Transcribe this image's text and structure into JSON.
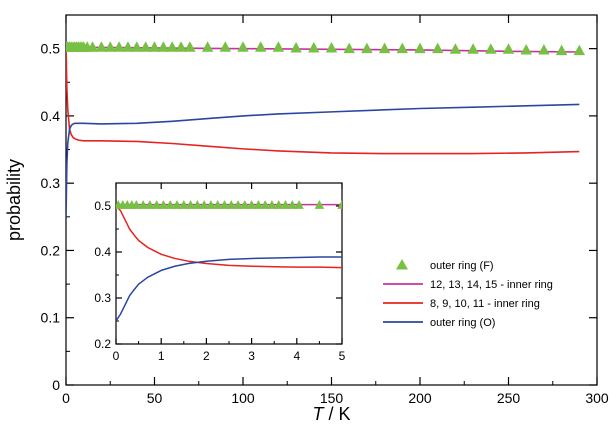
{
  "chart_data": [
    {
      "type": "line",
      "title": "",
      "xlabel_italic": "T",
      "xlabel_rest": " / K",
      "ylabel": "probability",
      "xlim": [
        0,
        300
      ],
      "ylim": [
        0,
        0.55
      ],
      "xticks": [
        0,
        50,
        100,
        150,
        200,
        250,
        300
      ],
      "yticks": [
        0,
        0.1,
        0.2,
        0.3,
        0.4,
        0.5
      ],
      "xtick_labels": [
        "0",
        "50",
        "100",
        "150",
        "200",
        "250",
        "300"
      ],
      "ytick_labels": [
        "0",
        "0.1",
        "0.2",
        "0.3",
        "0.4",
        "0.5"
      ],
      "legend_position": "right",
      "series": [
        {
          "name": "outer ring (F)",
          "kind": "markers",
          "marker": "triangle",
          "color": "#77c043",
          "x": [
            0.1,
            0.5,
            1,
            2,
            3,
            4,
            5,
            6,
            7,
            8,
            9,
            10,
            12,
            15,
            20,
            25,
            30,
            35,
            40,
            45,
            50,
            55,
            60,
            65,
            70,
            80,
            90,
            100,
            110,
            120,
            130,
            140,
            150,
            160,
            170,
            180,
            190,
            200,
            210,
            220,
            230,
            240,
            250,
            260,
            270,
            280,
            290
          ],
          "y": [
            0.502,
            0.502,
            0.502,
            0.502,
            0.502,
            0.502,
            0.502,
            0.502,
            0.502,
            0.502,
            0.502,
            0.502,
            0.502,
            0.502,
            0.502,
            0.502,
            0.502,
            0.502,
            0.502,
            0.502,
            0.502,
            0.502,
            0.502,
            0.502,
            0.502,
            0.502,
            0.502,
            0.502,
            0.502,
            0.502,
            0.501,
            0.501,
            0.501,
            0.5,
            0.5,
            0.5,
            0.5,
            0.5,
            0.5,
            0.499,
            0.499,
            0.499,
            0.499,
            0.498,
            0.498,
            0.497,
            0.497
          ]
        },
        {
          "name": "12, 13, 14, 15 - inner ring",
          "kind": "line",
          "color": "#c8329c",
          "x": [
            0,
            10,
            50,
            100,
            150,
            200,
            250,
            290
          ],
          "y": [
            0.503,
            0.502,
            0.501,
            0.5,
            0.499,
            0.498,
            0.496,
            0.495
          ]
        },
        {
          "name": "8, 9, 10, 11 - inner ring",
          "kind": "line",
          "color": "#e52421",
          "x": [
            0,
            0.5,
            1,
            2,
            3,
            4,
            5,
            7,
            10,
            20,
            40,
            60,
            80,
            100,
            120,
            150,
            180,
            200,
            230,
            260,
            290
          ],
          "y": [
            0.503,
            0.44,
            0.41,
            0.38,
            0.372,
            0.368,
            0.366,
            0.364,
            0.363,
            0.363,
            0.362,
            0.359,
            0.355,
            0.351,
            0.348,
            0.345,
            0.344,
            0.344,
            0.344,
            0.345,
            0.347
          ]
        },
        {
          "name": "outer ring (O)",
          "kind": "line",
          "color": "#2b46a1",
          "x": [
            0,
            0.5,
            1,
            2,
            3,
            4,
            5,
            7,
            10,
            20,
            40,
            60,
            80,
            100,
            120,
            150,
            180,
            200,
            230,
            260,
            290
          ],
          "y": [
            0.25,
            0.33,
            0.36,
            0.38,
            0.386,
            0.388,
            0.389,
            0.389,
            0.389,
            0.388,
            0.389,
            0.392,
            0.396,
            0.4,
            0.403,
            0.406,
            0.409,
            0.411,
            0.413,
            0.415,
            0.417
          ]
        }
      ]
    },
    {
      "type": "line",
      "title": "",
      "xlabel": "",
      "ylabel": "",
      "inset": true,
      "xlim": [
        0,
        5
      ],
      "ylim": [
        0.2,
        0.55
      ],
      "xticks": [
        0,
        1,
        2,
        3,
        4,
        5
      ],
      "yticks": [
        0.2,
        0.3,
        0.4,
        0.5
      ],
      "xtick_labels": [
        "0",
        "1",
        "2",
        "3",
        "4",
        "5"
      ],
      "ytick_labels": [
        "0.2",
        "0.3",
        "0.4",
        "0.5"
      ],
      "series": [
        {
          "name": "outer ring (F)",
          "kind": "markers",
          "marker": "triangle",
          "color": "#77c043",
          "x": [
            0.05,
            0.15,
            0.25,
            0.35,
            0.45,
            0.6,
            0.75,
            0.9,
            1.05,
            1.2,
            1.35,
            1.5,
            1.65,
            1.8,
            1.95,
            2.1,
            2.25,
            2.4,
            2.55,
            2.7,
            2.85,
            3.0,
            3.15,
            3.3,
            3.45,
            3.6,
            3.75,
            3.9,
            4.05,
            4.5,
            5.0
          ],
          "y": [
            0.502,
            0.502,
            0.502,
            0.502,
            0.502,
            0.502,
            0.502,
            0.502,
            0.502,
            0.502,
            0.502,
            0.502,
            0.502,
            0.502,
            0.502,
            0.502,
            0.502,
            0.502,
            0.502,
            0.502,
            0.502,
            0.502,
            0.502,
            0.502,
            0.502,
            0.502,
            0.502,
            0.502,
            0.502,
            0.502,
            0.502
          ]
        },
        {
          "name": "12, 13, 14, 15 - inner ring",
          "kind": "line",
          "color": "#c8329c",
          "x": [
            0,
            1,
            2,
            3,
            4,
            5
          ],
          "y": [
            0.503,
            0.503,
            0.503,
            0.503,
            0.503,
            0.503
          ]
        },
        {
          "name": "8, 9, 10, 11 - inner ring",
          "kind": "line",
          "color": "#e52421",
          "x": [
            0,
            0.1,
            0.2,
            0.3,
            0.4,
            0.5,
            0.7,
            1,
            1.3,
            1.6,
            2,
            2.5,
            3,
            3.5,
            4,
            4.5,
            5
          ],
          "y": [
            0.5,
            0.49,
            0.47,
            0.45,
            0.437,
            0.425,
            0.41,
            0.395,
            0.386,
            0.38,
            0.375,
            0.371,
            0.369,
            0.368,
            0.367,
            0.367,
            0.366
          ]
        },
        {
          "name": "outer ring (O)",
          "kind": "line",
          "color": "#2b46a1",
          "x": [
            0,
            0.1,
            0.2,
            0.3,
            0.4,
            0.5,
            0.7,
            1,
            1.3,
            1.6,
            2,
            2.5,
            3,
            3.5,
            4,
            4.5,
            5
          ],
          "y": [
            0.25,
            0.265,
            0.285,
            0.305,
            0.318,
            0.33,
            0.345,
            0.36,
            0.369,
            0.375,
            0.38,
            0.384,
            0.386,
            0.387,
            0.388,
            0.389,
            0.389
          ]
        }
      ]
    }
  ]
}
